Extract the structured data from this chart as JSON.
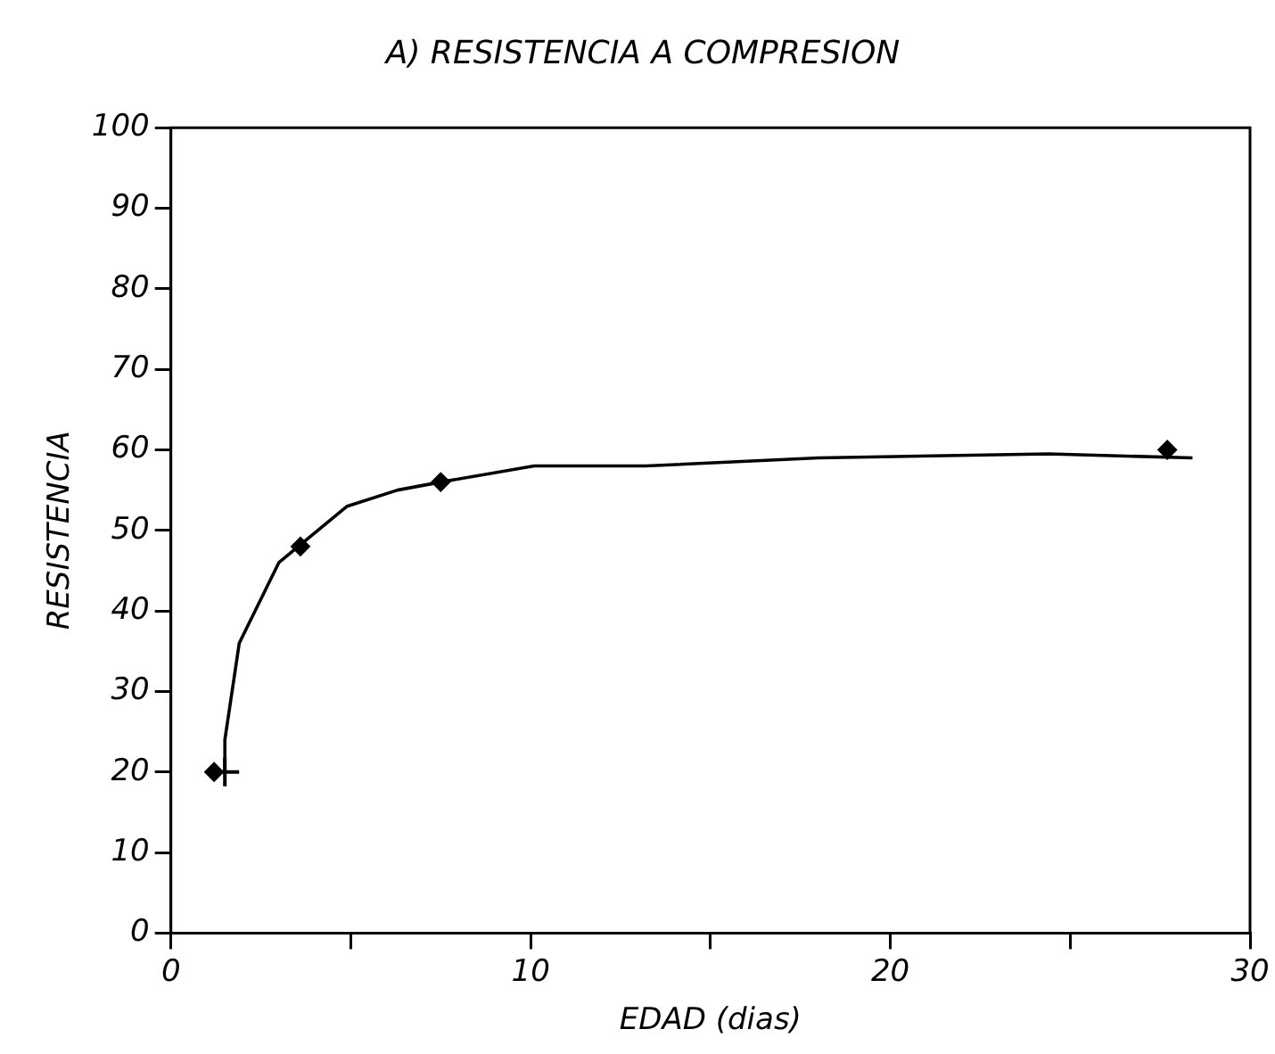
{
  "chart_data": {
    "type": "scatter",
    "title": "A) RESISTENCIA A COMPRESION",
    "xlabel": "EDAD (dias)",
    "ylabel": "RESISTENCIA",
    "xlim": [
      0,
      30
    ],
    "xticks": [
      0,
      {
        "value": 5,
        "label": null
      },
      10,
      {
        "value": 15,
        "label": null
      },
      20,
      {
        "value": 25,
        "label": null
      },
      30
    ],
    "ylim": [
      0,
      100
    ],
    "yticks": [
      0,
      10,
      20,
      30,
      40,
      50,
      60,
      70,
      80,
      90,
      100
    ],
    "grid": false,
    "legend": false,
    "series": [
      {
        "type": "scatter",
        "color": "#000000",
        "marker": "diamond",
        "x": [
          1.2,
          3.6,
          7.5,
          27.7
        ],
        "values": [
          20,
          48,
          56,
          60
        ]
      },
      {
        "type": "line",
        "color": "#000000",
        "marker": "none",
        "x": [
          1.5,
          1.5,
          1.9,
          3.0,
          4.9,
          6.3,
          7.5,
          10.1,
          13.2,
          18.0,
          24.4,
          28.4
        ],
        "values": [
          20,
          24,
          36,
          46,
          53,
          55,
          56,
          58,
          58,
          59,
          59.5,
          59
        ]
      },
      {
        "type": "scatter",
        "color": "#000000",
        "marker": "cross",
        "x": [
          1.5
        ],
        "values": [
          20
        ]
      }
    ]
  }
}
